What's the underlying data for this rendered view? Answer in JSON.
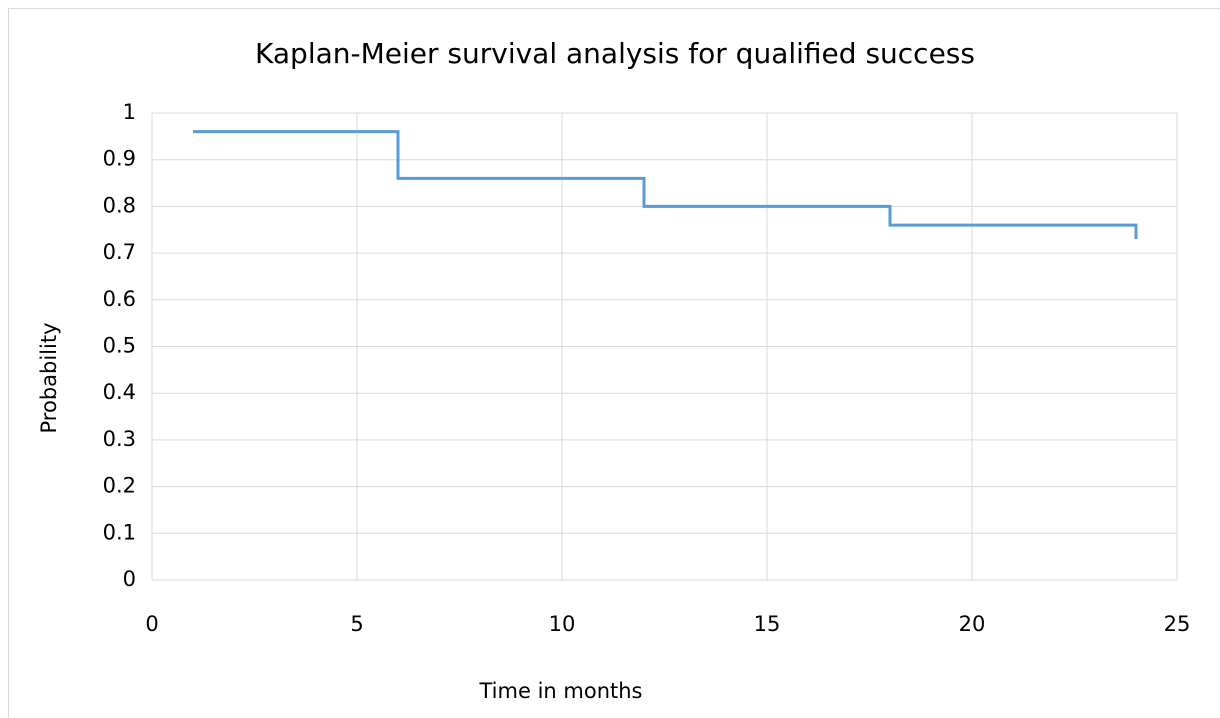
{
  "chart_data": {
    "type": "line",
    "title": "Kaplan-Meier survival analysis for qualified success",
    "x_label": "Time in months",
    "y_label": "Probability",
    "x": [
      1,
      6,
      6,
      12,
      12,
      18,
      18,
      24,
      24
    ],
    "values": [
      0.96,
      0.96,
      0.86,
      0.86,
      0.8,
      0.8,
      0.76,
      0.76,
      0.73
    ],
    "color": "#5b9bd5",
    "xlim": [
      0,
      25
    ],
    "xticks": [
      0,
      5,
      10,
      15,
      20,
      25
    ],
    "ylim": [
      0,
      1
    ],
    "yticks": [
      0,
      0.1,
      0.2,
      0.3,
      0.4,
      0.5,
      0.6,
      0.7,
      0.8,
      0.9,
      1
    ],
    "grid": true
  }
}
